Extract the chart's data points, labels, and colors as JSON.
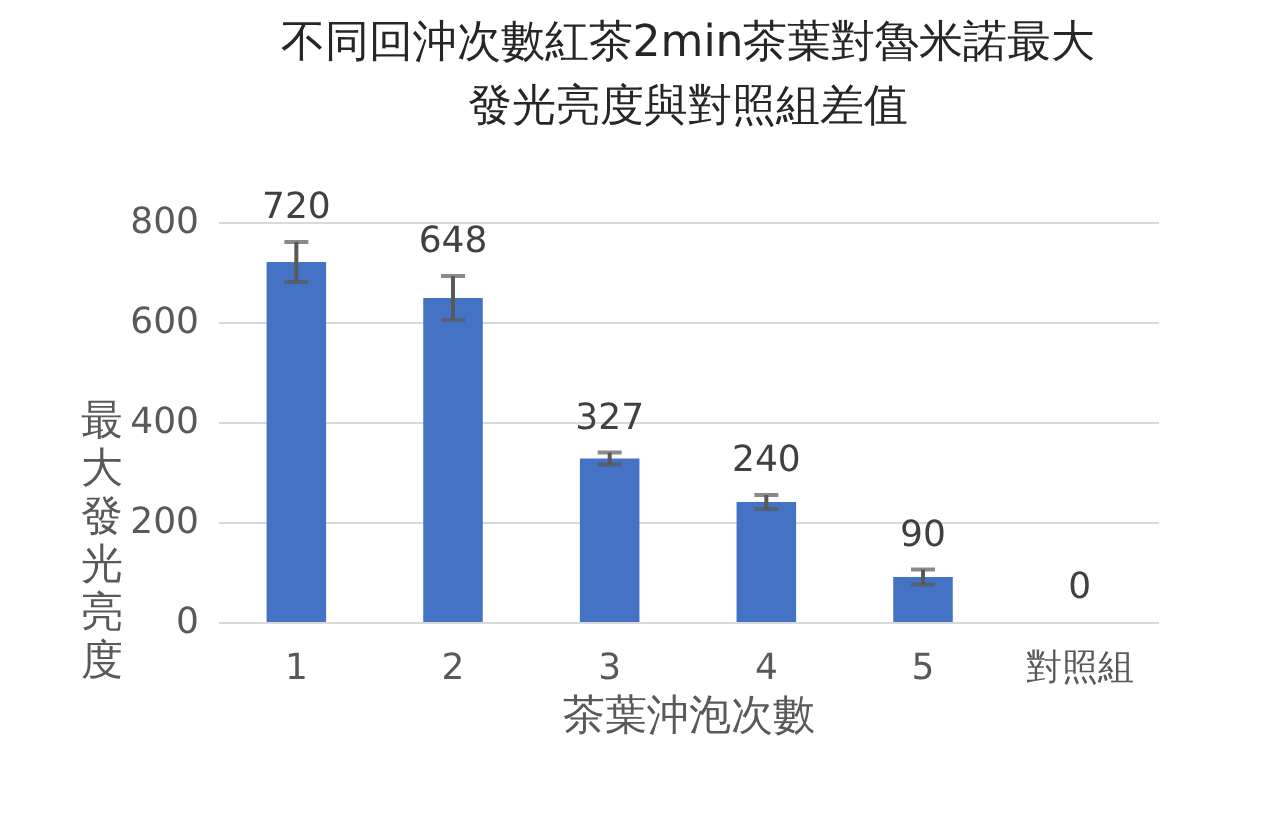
{
  "chart_data": {
    "type": "bar",
    "title": "不同回沖次數紅茶2min茶葉對魯米諾最大發光亮度與對照組差值",
    "xlabel": "茶葉沖泡次數",
    "ylabel": "最大發光亮度",
    "categories": [
      "1",
      "2",
      "3",
      "4",
      "5",
      "對照組"
    ],
    "values": [
      720,
      648,
      327,
      240,
      90,
      0
    ],
    "errors": [
      40,
      44,
      12,
      14,
      15,
      null
    ],
    "color": "#4472c4",
    "data_labels": true,
    "ylim": [
      0,
      800
    ],
    "yticks": [
      0,
      200,
      400,
      600,
      800
    ],
    "grid": "y"
  }
}
